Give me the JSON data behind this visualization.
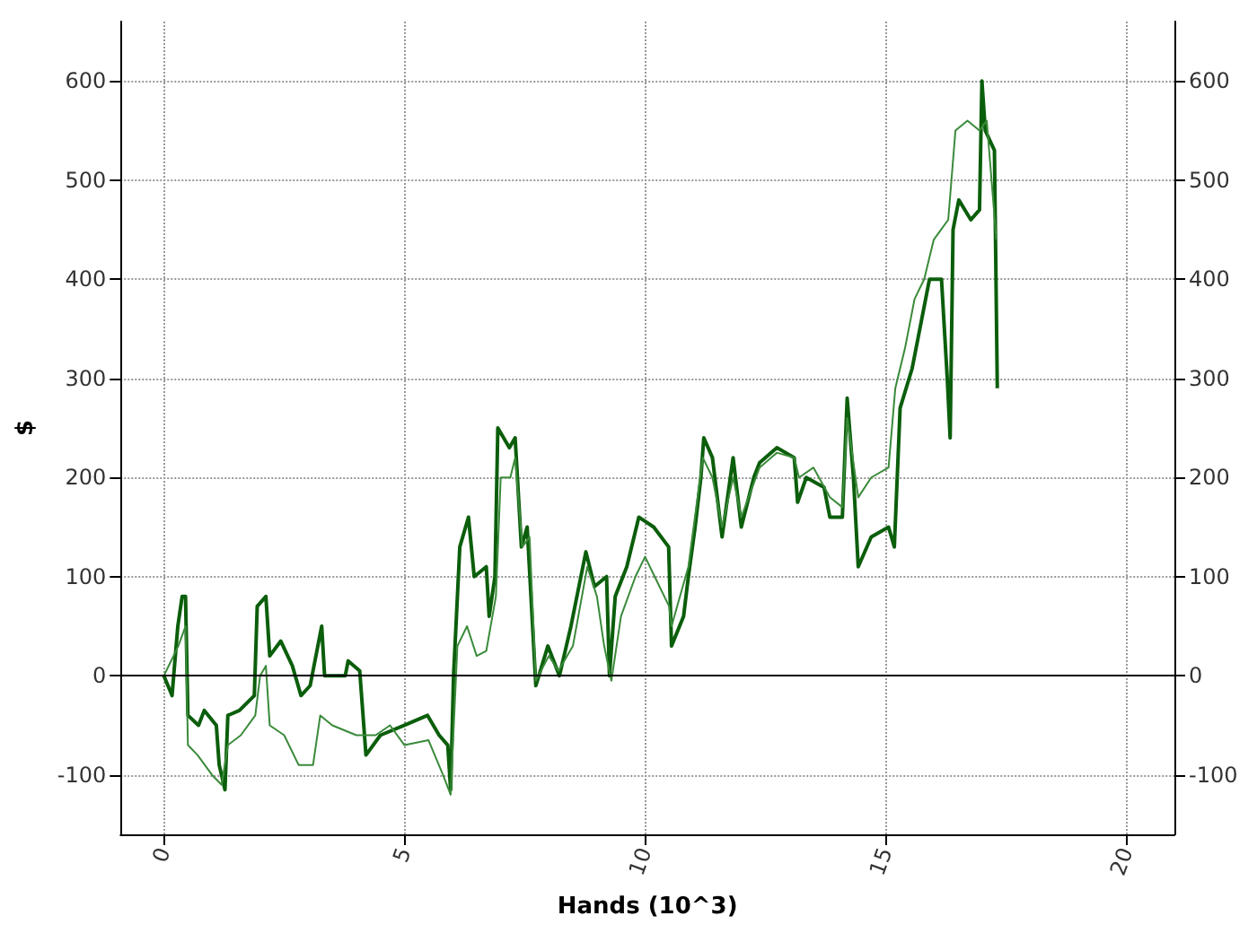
{
  "chart_data": {
    "type": "line",
    "xlabel": "Hands (10^3)",
    "ylabel": "$",
    "xlim": [
      -0.9,
      21
    ],
    "xticks": [
      0,
      5,
      10,
      15,
      20
    ],
    "ylim": [
      -160,
      660
    ],
    "yticks": [
      -100,
      0,
      100,
      200,
      300,
      400,
      500,
      600
    ],
    "y2lim": [
      -160,
      660
    ],
    "y2ticks": [
      -100,
      0,
      100,
      200,
      300,
      400,
      500,
      600
    ],
    "grid": true,
    "ref_lines": [
      {
        "axis": "y",
        "value": 0,
        "color": "#000000"
      }
    ],
    "series": [
      {
        "color": "#0b5e0b",
        "x": [
          0,
          0.17,
          0.29,
          0.38,
          0.45,
          0.5,
          0.72,
          0.84,
          1.09,
          1.15,
          1.27,
          1.33,
          1.57,
          1.88,
          1.94,
          2.12,
          2.2,
          2.43,
          2.67,
          2.85,
          3.04,
          3.28,
          3.34,
          3.77,
          3.83,
          4.07,
          4.2,
          4.5,
          5.0,
          5.48,
          5.72,
          5.9,
          5.96,
          6.02,
          6.15,
          6.33,
          6.45,
          6.7,
          6.76,
          6.88,
          6.94,
          7.18,
          7.3,
          7.43,
          7.55,
          7.73,
          7.98,
          8.22,
          8.46,
          8.77,
          8.95,
          9.2,
          9.26,
          9.38,
          9.62,
          9.87,
          10.18,
          10.49,
          10.55,
          10.8,
          10.9,
          11.04,
          11.16,
          11.22,
          11.4,
          11.6,
          11.83,
          12.0,
          12.26,
          12.38,
          12.74,
          13.1,
          13.17,
          13.35,
          13.72,
          13.84,
          14.1,
          14.2,
          14.33,
          14.43,
          14.7,
          15.06,
          15.18,
          15.3,
          15.55,
          15.67,
          15.91,
          16.16,
          16.28,
          16.34,
          16.4,
          16.52,
          16.77,
          16.95,
          17.0,
          17.07,
          17.26,
          17.32
        ],
        "values": [
          0,
          -20,
          50,
          80,
          80,
          -40,
          -50,
          -35,
          -50,
          -90,
          -115,
          -40,
          -35,
          -20,
          70,
          80,
          20,
          35,
          10,
          -20,
          -10,
          50,
          0,
          0,
          15,
          5,
          -80,
          -60,
          -50,
          -40,
          -60,
          -70,
          -115,
          0,
          130,
          160,
          100,
          110,
          60,
          100,
          250,
          230,
          240,
          130,
          150,
          -10,
          30,
          0,
          50,
          125,
          90,
          100,
          0,
          80,
          110,
          160,
          150,
          130,
          30,
          60,
          100,
          150,
          200,
          240,
          220,
          140,
          220,
          150,
          200,
          215,
          230,
          220,
          175,
          200,
          190,
          160,
          160,
          280,
          200,
          110,
          140,
          150,
          130,
          270,
          310,
          340,
          400,
          400,
          300,
          240,
          450,
          480,
          460,
          470,
          600,
          550,
          530,
          290
        ]
      },
      {
        "color": "#3a8a3a",
        "x": [
          0,
          0.3,
          0.45,
          0.5,
          0.7,
          1.0,
          1.2,
          1.33,
          1.6,
          1.9,
          2.0,
          2.12,
          2.2,
          2.5,
          2.8,
          3.1,
          3.25,
          3.5,
          4.0,
          4.4,
          4.7,
          5.0,
          5.5,
          5.8,
          5.96,
          6.1,
          6.3,
          6.5,
          6.7,
          6.9,
          7.0,
          7.2,
          7.3,
          7.45,
          7.6,
          7.73,
          8.0,
          8.2,
          8.5,
          8.8,
          9.0,
          9.15,
          9.3,
          9.5,
          9.8,
          10.0,
          10.2,
          10.5,
          10.55,
          10.9,
          11.2,
          11.4,
          11.6,
          11.83,
          12.0,
          12.38,
          12.74,
          13.1,
          13.2,
          13.5,
          13.84,
          14.1,
          14.2,
          14.43,
          14.7,
          15.06,
          15.2,
          15.4,
          15.6,
          15.8,
          16.0,
          16.3,
          16.45,
          16.7,
          16.95,
          17.1,
          17.3
        ],
        "values": [
          0,
          30,
          50,
          -70,
          -80,
          -100,
          -110,
          -70,
          -60,
          -40,
          0,
          10,
          -50,
          -60,
          -90,
          -90,
          -40,
          -50,
          -60,
          -60,
          -50,
          -70,
          -65,
          -100,
          -120,
          30,
          50,
          20,
          25,
          80,
          200,
          200,
          220,
          130,
          140,
          -5,
          20,
          5,
          30,
          110,
          80,
          30,
          -5,
          60,
          100,
          120,
          100,
          70,
          50,
          110,
          220,
          200,
          150,
          200,
          160,
          210,
          225,
          220,
          200,
          210,
          180,
          170,
          260,
          180,
          200,
          210,
          290,
          330,
          380,
          400,
          440,
          460,
          550,
          560,
          550,
          560,
          440
        ]
      }
    ]
  }
}
